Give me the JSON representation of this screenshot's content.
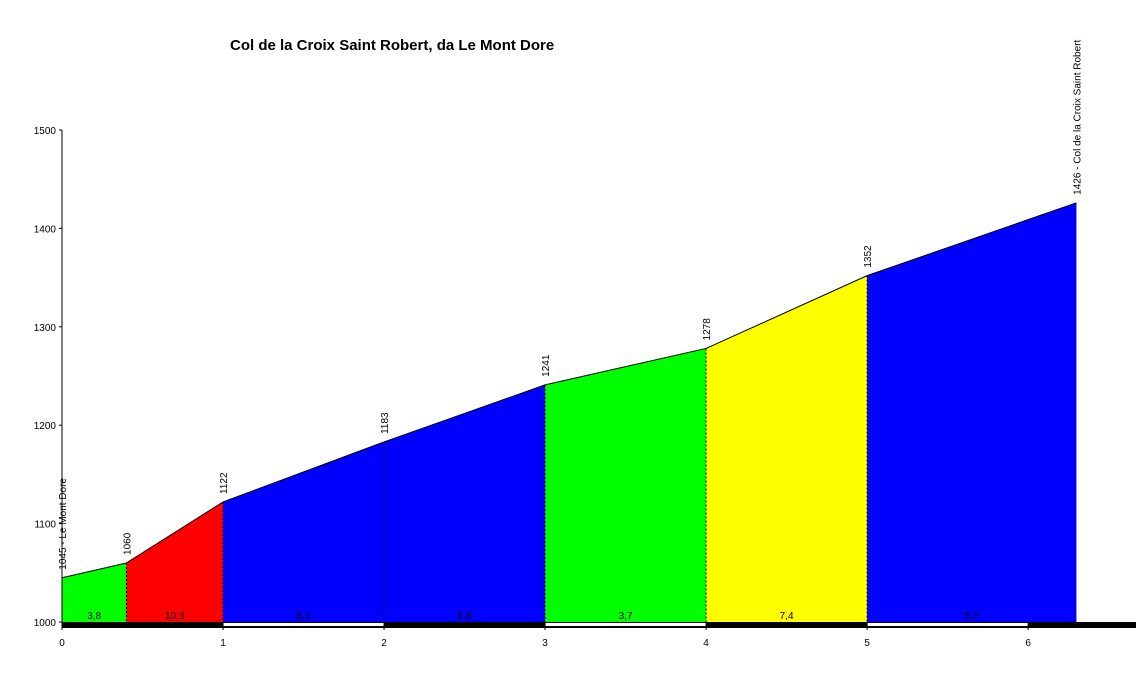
{
  "chart_data": {
    "type": "climb_profile",
    "title": "Col de la Croix Saint Robert, da Le Mont Dore",
    "x": [
      0,
      0.4,
      1,
      2,
      3,
      4,
      5,
      6.3
    ],
    "values": [
      1045,
      1060,
      1122,
      1183,
      1241,
      1278,
      1352,
      1426
    ],
    "value_labels": [
      "1045 - Le Mont Dore",
      "1060",
      "1122",
      "1183",
      "1241",
      "1278",
      "1352",
      "1426 - Col de la Croix Saint Robert"
    ],
    "segment_colors": [
      "#00ff00",
      "#ff0000",
      "#0000ff",
      "#0000ff",
      "#00ff00",
      "#ffff00",
      "#0000ff"
    ],
    "gradient_labels": [
      "3,8",
      "10,3",
      "6,1",
      "5,8",
      "3,7",
      "7,4",
      "5,7"
    ],
    "xlim": [
      0,
      6.67
    ],
    "xticks": [
      0,
      1,
      2,
      3,
      4,
      5,
      6
    ],
    "ylim": [
      1000,
      1500
    ],
    "yticks": [
      1000,
      1100,
      1200,
      1300,
      1400,
      1500
    ]
  }
}
